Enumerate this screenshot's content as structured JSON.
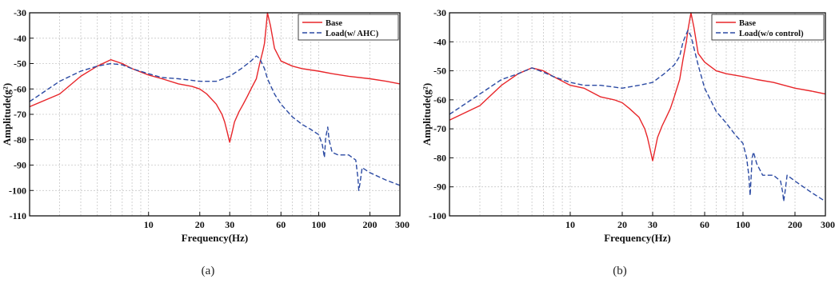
{
  "chart_data": [
    {
      "type": "line",
      "caption": "(a)",
      "xlabel": "Frequency(Hz)",
      "ylabel": "Amplitude(g²)",
      "xscale": "log",
      "xlim": [
        2,
        300
      ],
      "ylim": [
        -110,
        -30
      ],
      "xticks": [
        10,
        20,
        30,
        60,
        100,
        200,
        300
      ],
      "yticks": [
        -110,
        -100,
        -90,
        -80,
        -70,
        -60,
        -50,
        -40,
        -30
      ],
      "grid": true,
      "legend_position": "top-right",
      "series": [
        {
          "name": "Base",
          "color": "#e8262a",
          "dash": "solid",
          "x": [
            2,
            3,
            4,
            5,
            6,
            7,
            8,
            10,
            12,
            15,
            18,
            20,
            22,
            25,
            27,
            28,
            29,
            30,
            31,
            32,
            34,
            36,
            38,
            40,
            43,
            45,
            47,
            48,
            49,
            50,
            52,
            55,
            60,
            70,
            80,
            100,
            120,
            150,
            200,
            250,
            300
          ],
          "y": [
            -67,
            -62,
            -55,
            -51,
            -48.5,
            -50,
            -52,
            -54.5,
            -56,
            -58,
            -59,
            -60,
            -62,
            -66,
            -70,
            -73,
            -77,
            -81,
            -77,
            -73,
            -69,
            -66,
            -63,
            -60,
            -56,
            -50,
            -45,
            -42,
            -36,
            -30,
            -35,
            -44,
            -49,
            -51,
            -52,
            -53,
            -54,
            -55,
            -56,
            -57,
            -58
          ]
        },
        {
          "name": "Load(w/ AHC)",
          "color": "#2b4aa3",
          "dash": "6,3",
          "x": [
            2,
            3,
            4,
            5,
            6,
            7,
            8,
            10,
            12,
            15,
            20,
            25,
            30,
            35,
            40,
            43,
            45,
            48,
            50,
            55,
            60,
            70,
            80,
            90,
            100,
            105,
            108,
            110,
            113,
            115,
            120,
            130,
            150,
            165,
            170,
            172,
            175,
            180,
            200,
            250,
            300
          ],
          "y": [
            -65,
            -57,
            -53,
            -51,
            -50,
            -50.5,
            -52,
            -54,
            -55.5,
            -56,
            -57,
            -57,
            -55,
            -52,
            -49,
            -47,
            -48,
            -52,
            -56,
            -62,
            -66,
            -71,
            -74,
            -76,
            -78,
            -82,
            -87,
            -79,
            -75,
            -80,
            -85,
            -86,
            -86,
            -88,
            -95,
            -100,
            -97,
            -91,
            -93,
            -96,
            -98
          ]
        }
      ]
    },
    {
      "type": "line",
      "caption": "(b)",
      "xlabel": "Frequency(Hz)",
      "ylabel": "Amplitude(g²)",
      "xscale": "log",
      "xlim": [
        2,
        300
      ],
      "ylim": [
        -100,
        -30
      ],
      "xticks": [
        10,
        20,
        30,
        60,
        100,
        200,
        300
      ],
      "yticks": [
        -100,
        -90,
        -80,
        -70,
        -60,
        -50,
        -40,
        -30
      ],
      "grid": true,
      "legend_position": "top-right",
      "series": [
        {
          "name": "Base",
          "color": "#e8262a",
          "dash": "solid",
          "x": [
            2,
            3,
            4,
            5,
            6,
            7,
            8,
            10,
            12,
            15,
            18,
            20,
            22,
            25,
            27,
            28,
            29,
            30,
            31,
            32,
            34,
            36,
            38,
            40,
            43,
            45,
            47,
            48,
            49,
            50,
            52,
            55,
            60,
            70,
            80,
            100,
            120,
            150,
            200,
            250,
            300
          ],
          "y": [
            -67,
            -62,
            -55,
            -51,
            -49,
            -50,
            -52,
            -55,
            -56,
            -59,
            -60,
            -61,
            -63,
            -66,
            -70,
            -73,
            -77,
            -81,
            -77,
            -73,
            -69,
            -66,
            -63,
            -59,
            -53,
            -46,
            -40,
            -36,
            -33,
            -30,
            -35,
            -44,
            -47,
            -50,
            -51,
            -52,
            -53,
            -54,
            -56,
            -57,
            -58
          ]
        },
        {
          "name": "Load(w/o control)",
          "color": "#2b4aa3",
          "dash": "6,3",
          "x": [
            2,
            3,
            4,
            5,
            6,
            7,
            8,
            10,
            12,
            15,
            20,
            25,
            30,
            35,
            40,
            43,
            45,
            48,
            50,
            55,
            60,
            70,
            80,
            90,
            100,
            105,
            108,
            110,
            113,
            115,
            120,
            130,
            150,
            165,
            170,
            172,
            175,
            180,
            200,
            250,
            300
          ],
          "y": [
            -65,
            -58,
            -53,
            -51,
            -49,
            -50.5,
            -52,
            -54,
            -55,
            -55,
            -56,
            -55,
            -54,
            -51,
            -48,
            -45,
            -40,
            -36,
            -38,
            -48,
            -56,
            -64,
            -68,
            -72,
            -75,
            -80,
            -86,
            -93,
            -80,
            -78,
            -82,
            -86,
            -86,
            -88,
            -92,
            -95,
            -92,
            -86,
            -88,
            -92,
            -95
          ]
        }
      ]
    }
  ]
}
